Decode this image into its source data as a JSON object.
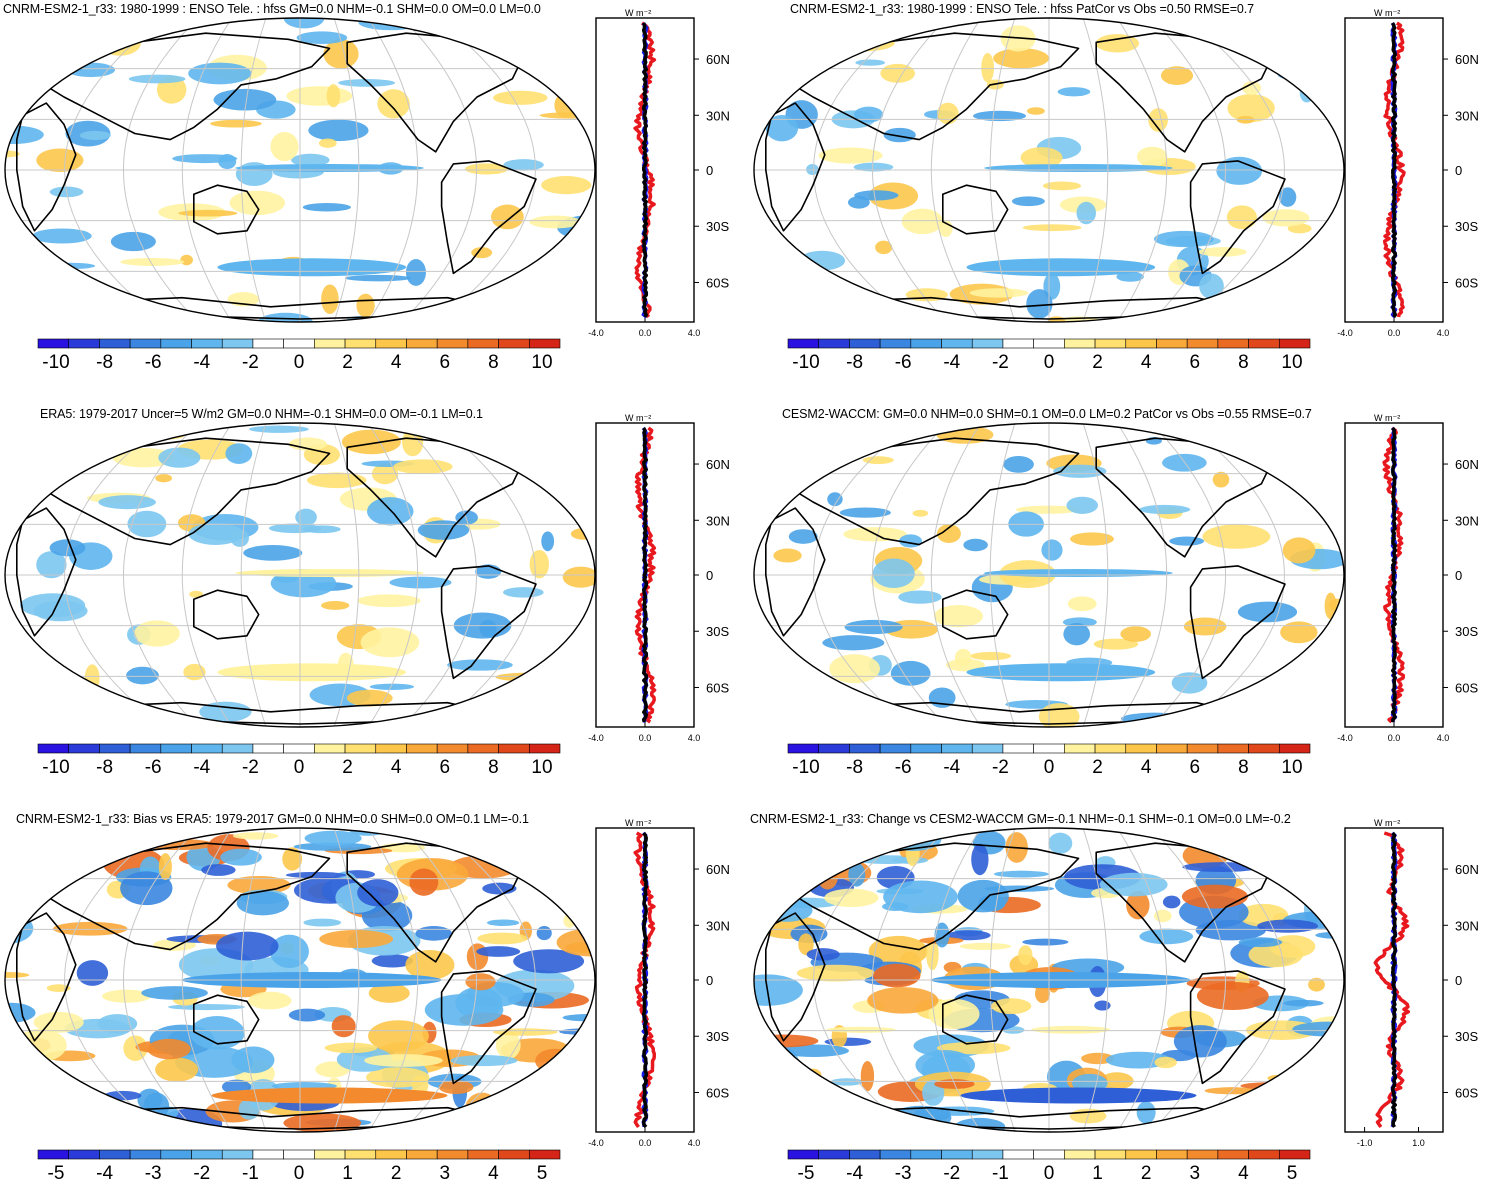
{
  "panels": [
    {
      "title": "CNRM-ESM2-1_r33: 1980-1999 : ENSO Tele. : hfss GM=0.0 NHM=-0.1 SHM=0.0 OM=0.0 LM=0.0",
      "profile": {
        "unit": "W m⁻²",
        "xticks": [
          "-4.0",
          "0.0",
          "4.0"
        ],
        "latlabels": [
          "60N",
          "30N",
          "0",
          "30S",
          "60S"
        ]
      },
      "colorbar": {
        "labels": [
          "-10",
          "-8",
          "-6",
          "-4",
          "-2",
          "0",
          "2",
          "4",
          "6",
          "8",
          "10"
        ]
      }
    },
    {
      "title": "CNRM-ESM2-1_r33: 1980-1999 : ENSO Tele. : hfss PatCor vs Obs =0.50 RMSE=0.7",
      "profile": {
        "unit": "W m⁻²",
        "xticks": [
          "-4.0",
          "0.0",
          "4.0"
        ],
        "latlabels": [
          "60N",
          "30N",
          "0",
          "30S",
          "60S"
        ]
      },
      "colorbar": {
        "labels": [
          "-10",
          "-8",
          "-6",
          "-4",
          "-2",
          "0",
          "2",
          "4",
          "6",
          "8",
          "10"
        ]
      }
    },
    {
      "title": "ERA5: 1979-2017 Uncer=5 W/m2 GM=0.0 NHM=-0.1 SHM=0.0 OM=-0.1 LM=0.1",
      "profile": {
        "unit": "W m⁻²",
        "xticks": [
          "-4.0",
          "0.0",
          "4.0"
        ],
        "latlabels": [
          "60N",
          "30N",
          "0",
          "30S",
          "60S"
        ]
      },
      "colorbar": {
        "labels": [
          "-10",
          "-8",
          "-6",
          "-4",
          "-2",
          "0",
          "2",
          "4",
          "6",
          "8",
          "10"
        ]
      }
    },
    {
      "title": "CESM2-WACCM: GM=0.0 NHM=0.0 SHM=0.1 OM=0.0 LM=0.2 PatCor vs Obs =0.55 RMSE=0.7",
      "profile": {
        "unit": "W m⁻²",
        "xticks": [
          "-4.0",
          "0.0",
          "4.0"
        ],
        "latlabels": [
          "60N",
          "30N",
          "0",
          "30S",
          "60S"
        ]
      },
      "colorbar": {
        "labels": [
          "-10",
          "-8",
          "-6",
          "-4",
          "-2",
          "0",
          "2",
          "4",
          "6",
          "8",
          "10"
        ]
      }
    },
    {
      "title": "CNRM-ESM2-1_r33: Bias vs ERA5: 1979-2017 GM=0.0 NHM=0.0 SHM=0.0 OM=0.1 LM=-0.1",
      "profile": {
        "unit": "W m⁻²",
        "xticks": [
          "-4.0",
          "0.0",
          "4.0"
        ],
        "latlabels": [
          "60N",
          "30N",
          "0",
          "30S",
          "60S"
        ]
      },
      "colorbar": {
        "labels": [
          "-5",
          "-4",
          "-3",
          "-2",
          "-1",
          "0",
          "1",
          "2",
          "3",
          "4",
          "5"
        ]
      }
    },
    {
      "title": "CNRM-ESM2-1_r33: Change vs CESM2-WACCM GM=-0.1 NHM=-0.1 SHM=-0.1 OM=0.0 LM=-0.2",
      "profile": {
        "unit": "W m⁻²",
        "xticks": [
          "-1.0",
          "1.0"
        ],
        "latlabels": [
          "60N",
          "30N",
          "0",
          "30S",
          "60S"
        ]
      },
      "colorbar": {
        "labels": [
          "-5",
          "-4",
          "-3",
          "-2",
          "-1",
          "0",
          "1",
          "2",
          "3",
          "4",
          "5"
        ]
      }
    }
  ],
  "colors": {
    "palette": [
      "#2a12e0",
      "#2b3bd9",
      "#2f5fd6",
      "#3a86e0",
      "#4aa3e8",
      "#5fb6ee",
      "#7cc6f0",
      "#ffffff",
      "#ffffff",
      "#fff3a0",
      "#ffe070",
      "#fcc64a",
      "#f9a83a",
      "#f38a2e",
      "#eb6a24",
      "#e0481c",
      "#d42518"
    ],
    "profile_red": "#e8191e",
    "profile_blue": "#1a1ae6",
    "profile_black": "#000000"
  }
}
